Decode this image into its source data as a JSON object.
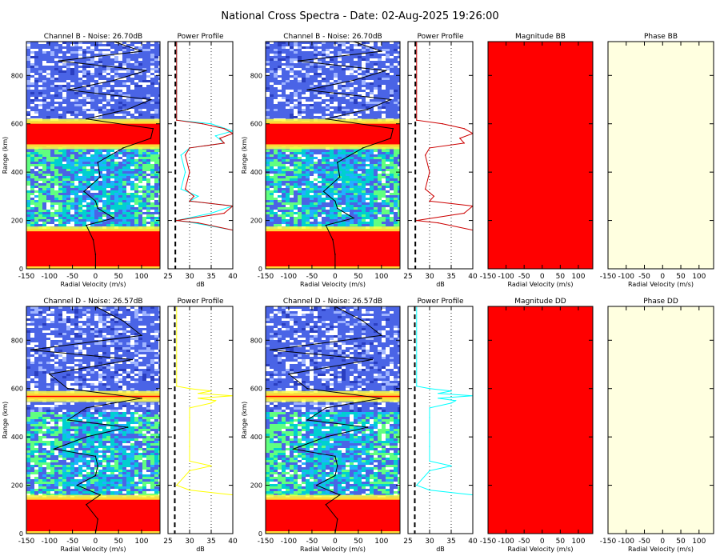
{
  "title": "National Cross Spectra - Date: 02-Aug-2025 19:26:00",
  "colors": {
    "spectra_bg": "#4a64e6",
    "strong": "#ff0000",
    "black_line": "#000000",
    "noise_line": "#000000",
    "magnitude_fill": "#ff0000",
    "phase_fill": "#ffffe0"
  },
  "chart_data": [
    {
      "type": "heatmap",
      "title": "Channel B - Noise: 26.70dB",
      "xlabel": "Radial Velocity (m/s)",
      "ylabel": "Range (km)",
      "xlim": [
        -150,
        140
      ],
      "ylim": [
        0,
        940
      ],
      "xticks": [
        "-150",
        "-100",
        "-50",
        "0",
        "50",
        "100"
      ],
      "yticks": [
        "0",
        "200",
        "400",
        "600",
        "800"
      ],
      "strong_bands_km": [
        [
          0,
          165
        ],
        [
          505,
          610
        ]
      ],
      "doppler_profile": {
        "range_km": [
          0,
          60,
          120,
          180,
          210,
          250,
          280,
          320,
          380,
          440,
          500,
          540,
          580,
          620,
          660,
          700,
          740,
          780,
          820,
          860,
          900,
          940
        ],
        "velocity_ms": [
          0,
          0,
          -5,
          -20,
          40,
          5,
          0,
          -25,
          10,
          5,
          60,
          120,
          125,
          -20,
          70,
          120,
          -60,
          40,
          110,
          -80,
          100,
          40
        ]
      }
    },
    {
      "type": "line",
      "title": "Power Profile",
      "xlabel": "dB",
      "ylabel": "",
      "xlim": [
        25,
        40
      ],
      "ylim": [
        0,
        940
      ],
      "xticks": [
        "25",
        "30",
        "35",
        "40"
      ],
      "noise_db": 26.7,
      "series": [
        {
          "color": "#00ffff",
          "range_km": [
            160,
            190,
            200,
            230,
            260,
            280,
            300,
            330,
            400,
            470,
            500,
            520,
            550,
            570,
            600,
            615,
            940
          ],
          "db": [
            40,
            31,
            27,
            35,
            40,
            30,
            32,
            28,
            29,
            28,
            30,
            38,
            36,
            40,
            35,
            27,
            27
          ]
        },
        {
          "color": "#cc0000",
          "range_km": [
            160,
            190,
            200,
            230,
            260,
            280,
            300,
            330,
            400,
            470,
            500,
            520,
            540,
            560,
            580,
            600,
            615,
            940
          ],
          "db": [
            40,
            32,
            27,
            38,
            40,
            30,
            31,
            29,
            30,
            29,
            30,
            38,
            37,
            40,
            38,
            33,
            27,
            27
          ]
        }
      ]
    },
    {
      "type": "heatmap",
      "title": "Channel B - Noise: 26.70dB",
      "xlabel": "Radial Velocity (m/s)",
      "ylabel": "Range (km)",
      "xlim": [
        -150,
        140
      ],
      "ylim": [
        0,
        940
      ],
      "xticks": [
        "-150",
        "-100",
        "-50",
        "0",
        "50",
        "100"
      ],
      "yticks": [
        "0",
        "200",
        "400",
        "600",
        "800"
      ],
      "strong_bands_km": [
        [
          0,
          165
        ],
        [
          505,
          610
        ]
      ],
      "doppler_profile": {
        "range_km": [
          0,
          60,
          120,
          180,
          210,
          250,
          280,
          320,
          380,
          440,
          500,
          540,
          580,
          620,
          660,
          700,
          740,
          780,
          820,
          860,
          900,
          940
        ],
        "velocity_ms": [
          0,
          0,
          -5,
          -20,
          40,
          5,
          0,
          -25,
          10,
          5,
          60,
          120,
          125,
          -20,
          70,
          120,
          -60,
          40,
          110,
          -80,
          100,
          40
        ]
      }
    },
    {
      "type": "line",
      "title": "Power Profile",
      "xlabel": "dB",
      "ylabel": "",
      "xlim": [
        25,
        40
      ],
      "ylim": [
        0,
        940
      ],
      "xticks": [
        "25",
        "30",
        "35",
        "40"
      ],
      "noise_db": 26.7,
      "series": [
        {
          "color": "#cc0000",
          "range_km": [
            160,
            190,
            200,
            230,
            260,
            280,
            300,
            330,
            400,
            470,
            500,
            520,
            540,
            560,
            580,
            600,
            615,
            940
          ],
          "db": [
            40,
            32,
            27,
            38,
            40,
            30,
            31,
            29,
            30,
            29,
            30,
            38,
            37,
            40,
            38,
            33,
            27,
            27
          ]
        }
      ]
    },
    {
      "type": "heatmap",
      "title": "Magnitude BB",
      "xlabel": "Radial Velocity (m/s)",
      "ylabel": "",
      "xlim": [
        -150,
        140
      ],
      "ylim": [
        0,
        940
      ],
      "xticks": [
        "-150",
        "-100",
        "-50",
        "0",
        "50",
        "100"
      ],
      "fill": "uniform red"
    },
    {
      "type": "heatmap",
      "title": "Phase BB",
      "xlabel": "Radial Velocity (m/s)",
      "ylabel": "",
      "xlim": [
        -150,
        140
      ],
      "ylim": [
        0,
        940
      ],
      "xticks": [
        "-150",
        "-100",
        "-50",
        "0",
        "50",
        "100"
      ],
      "fill": "uniform light yellow"
    },
    {
      "type": "heatmap",
      "title": "Channel D - Noise: 26.57dB",
      "xlabel": "Radial Velocity (m/s)",
      "ylabel": "Range (km)",
      "xlim": [
        -150,
        140
      ],
      "ylim": [
        0,
        940
      ],
      "xticks": [
        "-150",
        "-100",
        "-50",
        "0",
        "50",
        "100"
      ],
      "yticks": [
        "0",
        "200",
        "400",
        "600",
        "800"
      ],
      "strong_bands_km": [
        [
          0,
          150
        ],
        [
          555,
          580
        ]
      ],
      "doppler_profile": {
        "range_km": [
          0,
          60,
          120,
          160,
          200,
          240,
          280,
          320,
          350,
          400,
          440,
          470,
          520,
          560,
          600,
          660,
          720,
          760,
          820,
          880,
          940
        ],
        "velocity_ms": [
          0,
          5,
          -20,
          10,
          -40,
          0,
          5,
          0,
          -90,
          -20,
          70,
          -60,
          -20,
          100,
          -60,
          -100,
          80,
          -140,
          100,
          60,
          0
        ]
      }
    },
    {
      "type": "line",
      "title": "Power Profile",
      "xlabel": "dB",
      "ylabel": "",
      "xlim": [
        25,
        40
      ],
      "ylim": [
        0,
        940
      ],
      "xticks": [
        "25",
        "30",
        "35",
        "40"
      ],
      "noise_db": 26.57,
      "series": [
        {
          "color": "#ffff00",
          "range_km": [
            160,
            180,
            200,
            260,
            280,
            300,
            360,
            420,
            480,
            520,
            540,
            550,
            560,
            570,
            580,
            590,
            600,
            610,
            940
          ],
          "db": [
            40,
            30,
            27,
            30,
            35,
            30,
            30,
            30,
            30,
            30,
            35,
            36,
            32,
            40,
            32,
            35,
            30,
            27,
            27
          ]
        }
      ]
    },
    {
      "type": "heatmap",
      "title": "Channel D - Noise: 26.57dB",
      "xlabel": "Radial Velocity (m/s)",
      "ylabel": "Range (km)",
      "xlim": [
        -150,
        140
      ],
      "ylim": [
        0,
        940
      ],
      "xticks": [
        "-150",
        "-100",
        "-50",
        "0",
        "50",
        "100"
      ],
      "yticks": [
        "0",
        "200",
        "400",
        "600",
        "800"
      ],
      "strong_bands_km": [
        [
          0,
          150
        ],
        [
          555,
          580
        ]
      ],
      "doppler_profile": {
        "range_km": [
          0,
          60,
          120,
          160,
          200,
          240,
          280,
          320,
          350,
          400,
          440,
          470,
          520,
          560,
          600,
          660,
          720,
          760,
          820,
          880,
          940
        ],
        "velocity_ms": [
          0,
          5,
          -20,
          10,
          -40,
          0,
          5,
          0,
          -90,
          -20,
          70,
          -60,
          -20,
          100,
          -60,
          -100,
          80,
          -140,
          100,
          60,
          0
        ]
      }
    },
    {
      "type": "line",
      "title": "Power Profile",
      "xlabel": "dB",
      "ylabel": "",
      "xlim": [
        25,
        40
      ],
      "ylim": [
        0,
        940
      ],
      "xticks": [
        "25",
        "30",
        "35",
        "40"
      ],
      "noise_db": 26.57,
      "series": [
        {
          "color": "#00ffff",
          "range_km": [
            160,
            180,
            200,
            260,
            280,
            300,
            360,
            420,
            480,
            520,
            540,
            550,
            560,
            570,
            580,
            590,
            600,
            610,
            940
          ],
          "db": [
            40,
            30,
            27,
            30,
            35,
            30,
            30,
            30,
            30,
            30,
            35,
            36,
            32,
            40,
            32,
            35,
            30,
            27,
            27
          ]
        }
      ]
    },
    {
      "type": "heatmap",
      "title": "Magnitude DD",
      "xlabel": "Radial Velocity (m/s)",
      "ylabel": "",
      "xlim": [
        -150,
        140
      ],
      "ylim": [
        0,
        940
      ],
      "xticks": [
        "-150",
        "-100",
        "-50",
        "0",
        "50",
        "100"
      ],
      "fill": "uniform red"
    },
    {
      "type": "heatmap",
      "title": "Phase DD",
      "xlabel": "Radial Velocity (m/s)",
      "ylabel": "",
      "xlim": [
        -150,
        140
      ],
      "ylim": [
        0,
        940
      ],
      "xticks": [
        "-150",
        "-100",
        "-50",
        "0",
        "50",
        "100"
      ],
      "fill": "uniform light yellow"
    }
  ]
}
